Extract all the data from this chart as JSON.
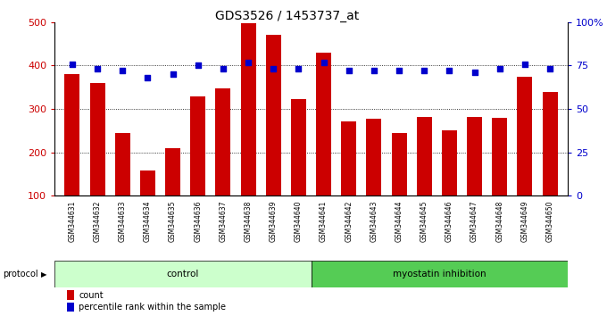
{
  "title": "GDS3526 / 1453737_at",
  "samples": [
    "GSM344631",
    "GSM344632",
    "GSM344633",
    "GSM344634",
    "GSM344635",
    "GSM344636",
    "GSM344637",
    "GSM344638",
    "GSM344639",
    "GSM344640",
    "GSM344641",
    "GSM344642",
    "GSM344643",
    "GSM344644",
    "GSM344645",
    "GSM344646",
    "GSM344647",
    "GSM344648",
    "GSM344649",
    "GSM344650"
  ],
  "counts": [
    380,
    360,
    245,
    158,
    210,
    330,
    348,
    498,
    470,
    323,
    430,
    272,
    278,
    245,
    282,
    250,
    282,
    280,
    375,
    340
  ],
  "percentile_ranks": [
    76,
    73,
    72,
    68,
    70,
    75,
    73,
    77,
    73,
    73,
    77,
    72,
    72,
    72,
    72,
    72,
    71,
    73,
    76,
    73
  ],
  "groups": [
    "control",
    "control",
    "control",
    "control",
    "control",
    "control",
    "control",
    "control",
    "control",
    "control",
    "myostatin inhibition",
    "myostatin inhibition",
    "myostatin inhibition",
    "myostatin inhibition",
    "myostatin inhibition",
    "myostatin inhibition",
    "myostatin inhibition",
    "myostatin inhibition",
    "myostatin inhibition",
    "myostatin inhibition"
  ],
  "bar_color": "#cc0000",
  "dot_color": "#0000cc",
  "ylim_left": [
    100,
    500
  ],
  "ylim_right": [
    0,
    100
  ],
  "yticks_left": [
    100,
    200,
    300,
    400,
    500
  ],
  "yticks_right": [
    0,
    25,
    50,
    75,
    100
  ],
  "yticklabels_right": [
    "0",
    "25",
    "50",
    "75",
    "100%"
  ],
  "grid_lines": [
    200,
    300,
    400
  ],
  "bg_color": "#ffffff",
  "xtick_bg_color": "#d0d0d0",
  "control_color": "#ccffcc",
  "myostatin_color": "#55cc55",
  "bar_color_left": "#cc0000",
  "dot_color_blue": "#0000cc",
  "title_fontsize": 10,
  "tick_fontsize": 7,
  "xtick_fontsize": 5.5,
  "legend_count_color": "#cc0000",
  "legend_pct_color": "#0000cc",
  "protocol_arrow_color": "#333333"
}
